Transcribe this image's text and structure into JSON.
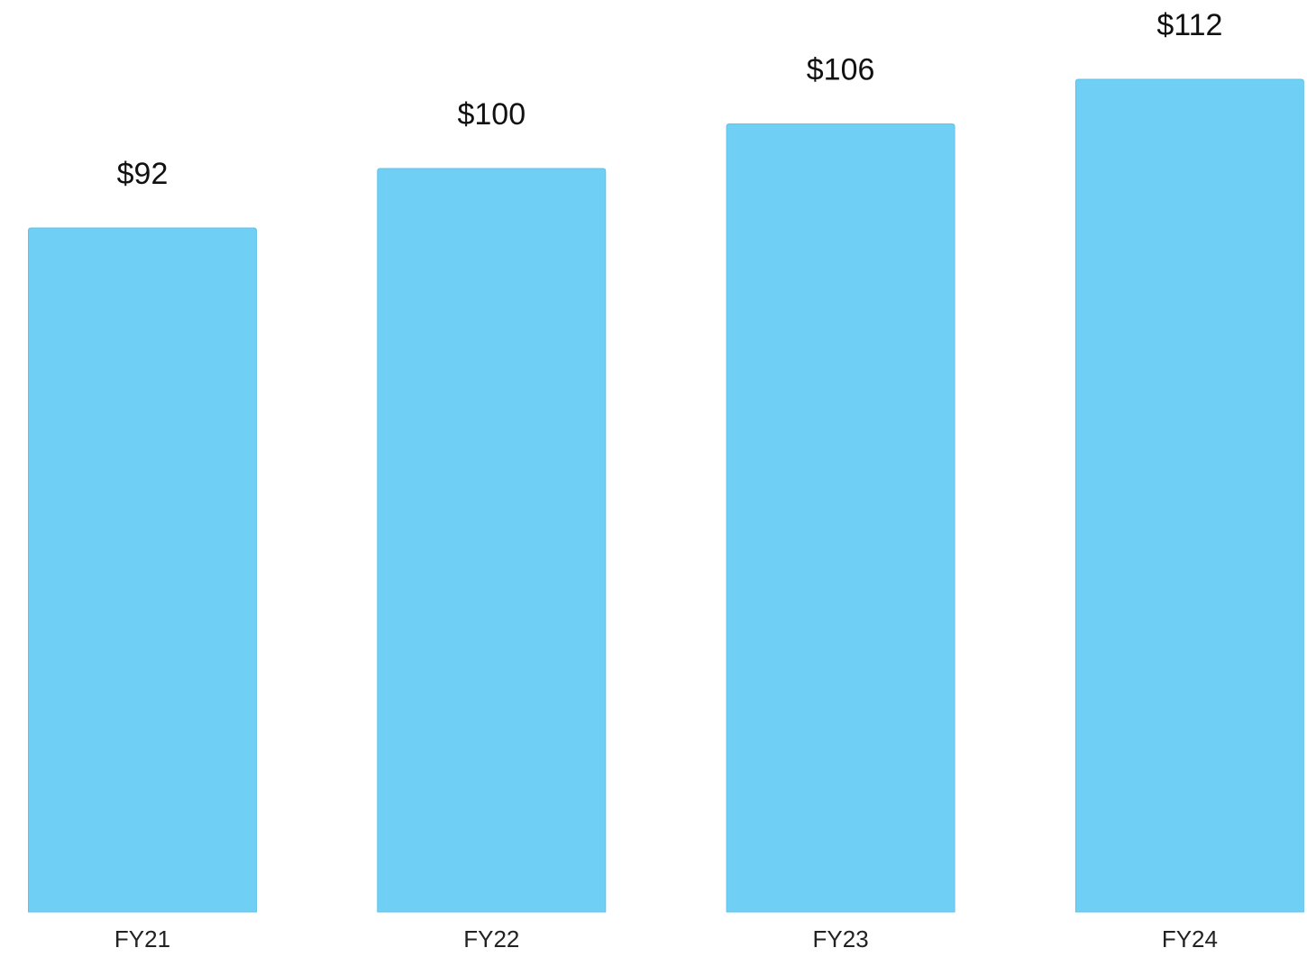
{
  "chart_data": {
    "type": "bar",
    "categories": [
      "FY21",
      "FY22",
      "FY23",
      "FY24"
    ],
    "values": [
      92,
      100,
      106,
      112
    ],
    "value_labels": [
      "$92",
      "$100",
      "$106",
      "$112"
    ],
    "color": "#6fcff4"
  }
}
